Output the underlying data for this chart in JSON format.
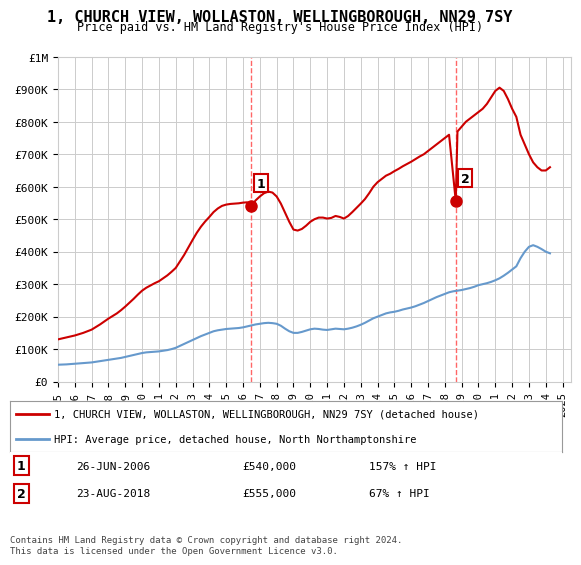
{
  "title": "1, CHURCH VIEW, WOLLASTON, WELLINGBOROUGH, NN29 7SY",
  "subtitle": "Price paid vs. HM Land Registry's House Price Index (HPI)",
  "legend_line1": "1, CHURCH VIEW, WOLLASTON, WELLINGBOROUGH, NN29 7SY (detached house)",
  "legend_line2": "HPI: Average price, detached house, North Northamptonshire",
  "footnote": "Contains HM Land Registry data © Crown copyright and database right 2024.\nThis data is licensed under the Open Government Licence v3.0.",
  "sale1_label": "1",
  "sale1_date": "26-JUN-2006",
  "sale1_price": "£540,000",
  "sale1_hpi": "157% ↑ HPI",
  "sale2_label": "2",
  "sale2_date": "23-AUG-2018",
  "sale2_price": "£555,000",
  "sale2_hpi": "67% ↑ HPI",
  "sale1_x": 2006.49,
  "sale1_y": 540000,
  "sale2_x": 2018.65,
  "sale2_y": 555000,
  "vline1_x": 2006.49,
  "vline2_x": 2018.65,
  "red_color": "#cc0000",
  "blue_color": "#6699cc",
  "vline_color": "#ff6666",
  "grid_color": "#cccccc",
  "bg_color": "#ffffff",
  "ylim": [
    0,
    1000000
  ],
  "xlim_min": 1995,
  "xlim_max": 2025.5,
  "ylabel_ticks": [
    0,
    100000,
    200000,
    300000,
    400000,
    500000,
    600000,
    700000,
    800000,
    900000,
    1000000
  ],
  "ylabel_labels": [
    "£0",
    "£100K",
    "£200K",
    "£300K",
    "£400K",
    "£500K",
    "£600K",
    "£700K",
    "£800K",
    "£900K",
    "£1M"
  ],
  "hpi_data": {
    "x": [
      1995,
      1995.25,
      1995.5,
      1995.75,
      1996,
      1996.25,
      1996.5,
      1996.75,
      1997,
      1997.25,
      1997.5,
      1997.75,
      1998,
      1998.25,
      1998.5,
      1998.75,
      1999,
      1999.25,
      1999.5,
      1999.75,
      2000,
      2000.25,
      2000.5,
      2000.75,
      2001,
      2001.25,
      2001.5,
      2001.75,
      2002,
      2002.25,
      2002.5,
      2002.75,
      2003,
      2003.25,
      2003.5,
      2003.75,
      2004,
      2004.25,
      2004.5,
      2004.75,
      2005,
      2005.25,
      2005.5,
      2005.75,
      2006,
      2006.25,
      2006.5,
      2006.75,
      2007,
      2007.25,
      2007.5,
      2007.75,
      2008,
      2008.25,
      2008.5,
      2008.75,
      2009,
      2009.25,
      2009.5,
      2009.75,
      2010,
      2010.25,
      2010.5,
      2010.75,
      2011,
      2011.25,
      2011.5,
      2011.75,
      2012,
      2012.25,
      2012.5,
      2012.75,
      2013,
      2013.25,
      2013.5,
      2013.75,
      2014,
      2014.25,
      2014.5,
      2014.75,
      2015,
      2015.25,
      2015.5,
      2015.75,
      2016,
      2016.25,
      2016.5,
      2016.75,
      2017,
      2017.25,
      2017.5,
      2017.75,
      2018,
      2018.25,
      2018.5,
      2018.75,
      2019,
      2019.25,
      2019.5,
      2019.75,
      2020,
      2020.25,
      2020.5,
      2020.75,
      2021,
      2021.25,
      2021.5,
      2021.75,
      2022,
      2022.25,
      2022.5,
      2022.75,
      2023,
      2023.25,
      2023.5,
      2023.75,
      2024,
      2024.25
    ],
    "y": [
      52000,
      52500,
      53000,
      54000,
      55000,
      56000,
      57000,
      58000,
      59000,
      61000,
      63000,
      65000,
      67000,
      69000,
      71000,
      73000,
      76000,
      79000,
      82000,
      85000,
      88000,
      90000,
      91000,
      92000,
      93000,
      95000,
      97000,
      100000,
      104000,
      110000,
      116000,
      122000,
      128000,
      134000,
      140000,
      145000,
      150000,
      155000,
      158000,
      160000,
      162000,
      163000,
      164000,
      165000,
      167000,
      170000,
      173000,
      176000,
      178000,
      180000,
      181000,
      180000,
      178000,
      172000,
      163000,
      155000,
      150000,
      150000,
      153000,
      157000,
      161000,
      163000,
      162000,
      160000,
      159000,
      161000,
      163000,
      162000,
      161000,
      163000,
      166000,
      170000,
      175000,
      181000,
      188000,
      195000,
      200000,
      205000,
      210000,
      213000,
      215000,
      218000,
      222000,
      225000,
      228000,
      232000,
      237000,
      242000,
      248000,
      254000,
      260000,
      265000,
      270000,
      275000,
      278000,
      280000,
      282000,
      285000,
      288000,
      292000,
      297000,
      300000,
      303000,
      307000,
      312000,
      318000,
      326000,
      335000,
      345000,
      355000,
      380000,
      400000,
      415000,
      420000,
      415000,
      408000,
      400000,
      395000
    ]
  },
  "red_data": {
    "x": [
      1995,
      1995.25,
      1995.5,
      1995.75,
      1996,
      1996.25,
      1996.5,
      1996.75,
      1997,
      1997.25,
      1997.5,
      1997.75,
      1998,
      1998.25,
      1998.5,
      1998.75,
      1999,
      1999.25,
      1999.5,
      1999.75,
      2000,
      2000.25,
      2000.5,
      2000.75,
      2001,
      2001.25,
      2001.5,
      2001.75,
      2002,
      2002.25,
      2002.5,
      2002.75,
      2003,
      2003.25,
      2003.5,
      2003.75,
      2004,
      2004.25,
      2004.5,
      2004.75,
      2005,
      2005.25,
      2005.5,
      2005.75,
      2006,
      2006.25,
      2006.49,
      2006.75,
      2007,
      2007.25,
      2007.5,
      2007.75,
      2008,
      2008.25,
      2008.5,
      2008.75,
      2009,
      2009.25,
      2009.5,
      2009.75,
      2010,
      2010.25,
      2010.5,
      2010.75,
      2011,
      2011.25,
      2011.5,
      2011.75,
      2012,
      2012.25,
      2012.5,
      2012.75,
      2013,
      2013.25,
      2013.5,
      2013.75,
      2014,
      2014.25,
      2014.5,
      2014.75,
      2015,
      2015.25,
      2015.5,
      2015.75,
      2016,
      2016.25,
      2016.5,
      2016.75,
      2017,
      2017.25,
      2017.5,
      2017.75,
      2018,
      2018.25,
      2018.65,
      2018.75,
      2019,
      2019.25,
      2019.5,
      2019.75,
      2020,
      2020.25,
      2020.5,
      2020.75,
      2021,
      2021.25,
      2021.5,
      2021.75,
      2022,
      2022.25,
      2022.5,
      2022.75,
      2023,
      2023.25,
      2023.5,
      2023.75,
      2024,
      2024.25
    ],
    "y": [
      130000,
      133000,
      136000,
      139000,
      142000,
      146000,
      150000,
      155000,
      160000,
      168000,
      176000,
      185000,
      194000,
      202000,
      210000,
      220000,
      231000,
      243000,
      255000,
      268000,
      280000,
      289000,
      296000,
      303000,
      309000,
      318000,
      327000,
      338000,
      350000,
      370000,
      390000,
      413000,
      436000,
      458000,
      477000,
      493000,
      507000,
      522000,
      533000,
      541000,
      545000,
      547000,
      548000,
      549000,
      551000,
      552000,
      540000,
      558000,
      570000,
      580000,
      585000,
      582000,
      570000,
      548000,
      520000,
      492000,
      468000,
      465000,
      470000,
      480000,
      492000,
      500000,
      505000,
      505000,
      502000,
      504000,
      510000,
      507000,
      502000,
      510000,
      522000,
      535000,
      548000,
      562000,
      580000,
      600000,
      614000,
      624000,
      634000,
      640000,
      648000,
      655000,
      663000,
      670000,
      677000,
      685000,
      693000,
      700000,
      710000,
      720000,
      730000,
      740000,
      750000,
      760000,
      555000,
      770000,
      785000,
      800000,
      810000,
      820000,
      830000,
      840000,
      855000,
      875000,
      895000,
      905000,
      895000,
      870000,
      840000,
      815000,
      760000,
      730000,
      700000,
      675000,
      660000,
      650000,
      650000,
      660000
    ]
  }
}
